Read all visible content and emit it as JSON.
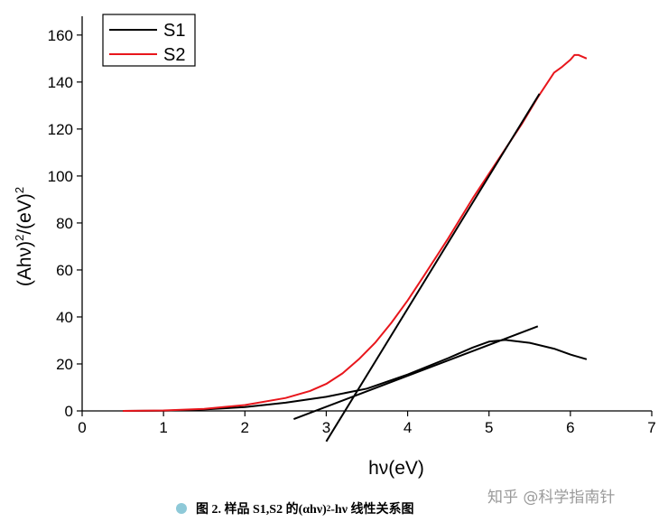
{
  "chart_data": {
    "type": "line",
    "xlabel": "hν(eV)",
    "ylabel_base": "(Ahν)",
    "ylabel_sup1": "2",
    "ylabel_mid": "/(eV)",
    "ylabel_sup2": "2",
    "xlim": [
      0,
      7
    ],
    "ylim": [
      0,
      168
    ],
    "xticks": [
      0,
      1,
      2,
      3,
      4,
      5,
      6,
      7
    ],
    "yticks": [
      0,
      20,
      40,
      60,
      80,
      100,
      120,
      140,
      160
    ],
    "legend_position": "top-left",
    "series": [
      {
        "name": "S1",
        "color": "#000000",
        "x": [
          0.5,
          1.0,
          1.5,
          2.0,
          2.5,
          3.0,
          3.5,
          4.0,
          4.5,
          4.8,
          5.0,
          5.2,
          5.5,
          5.8,
          6.0,
          6.2
        ],
        "y": [
          0.0,
          0.1,
          0.6,
          1.6,
          3.5,
          6.0,
          9.5,
          15.5,
          22.5,
          27.0,
          29.5,
          30.2,
          29.0,
          26.5,
          24.0,
          22.0
        ]
      },
      {
        "name": "S2",
        "color": "#e8161c",
        "x": [
          0.5,
          1.0,
          1.5,
          2.0,
          2.5,
          2.8,
          3.0,
          3.2,
          3.4,
          3.6,
          3.8,
          4.0,
          4.2,
          4.5,
          4.8,
          5.0,
          5.2,
          5.4,
          5.6,
          5.8,
          5.9,
          6.0,
          6.05,
          6.1,
          6.2
        ],
        "y": [
          0.0,
          0.2,
          0.9,
          2.5,
          5.5,
          8.5,
          11.5,
          16.0,
          22.0,
          29.0,
          37.5,
          47.0,
          57.5,
          73.5,
          90.5,
          101.0,
          111.5,
          122.0,
          133.5,
          144.0,
          146.5,
          149.5,
          151.5,
          151.5,
          150.0
        ]
      }
    ],
    "tangent_lines": [
      {
        "x": [
          2.6,
          5.6
        ],
        "y": [
          -3.5,
          36.0
        ]
      },
      {
        "x": [
          3.0,
          5.62
        ],
        "y": [
          -13.0,
          135.0
        ]
      }
    ]
  },
  "caption": {
    "figure_label": "图 2.",
    "text_before": "样品 S1,S2 的(αhν)",
    "superscript": "2",
    "text_after": "-hν 线性关系图"
  },
  "watermark": "知乎 @科学指南针"
}
